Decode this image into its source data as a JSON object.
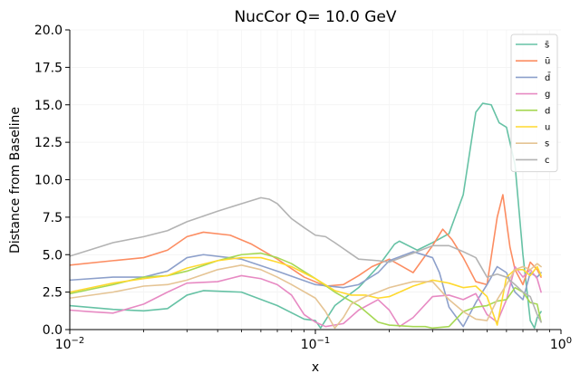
{
  "chart_data": {
    "type": "line",
    "title": "NucCor Q= 10.0 GeV",
    "xlabel": "x",
    "ylabel": "Distance from Baseline",
    "xscale": "log",
    "xlim": [
      0.01,
      1.0
    ],
    "ylim": [
      0,
      20
    ],
    "xticks": [
      {
        "value": 0.01,
        "label": "10",
        "exp": "−2"
      },
      {
        "value": 0.1,
        "label": "10",
        "exp": "−1"
      },
      {
        "value": 1.0,
        "label": "10",
        "exp": "0"
      }
    ],
    "yticks": [
      0.0,
      2.5,
      5.0,
      7.5,
      10.0,
      12.5,
      15.0,
      17.5,
      20.0
    ],
    "ytick_labels": [
      "0.0",
      "2.5",
      "5.0",
      "7.5",
      "10.0",
      "12.5",
      "15.0",
      "17.5",
      "20.0"
    ],
    "grid": true,
    "legend_position": "top-right",
    "series": [
      {
        "name": "s̄",
        "color": "#66c2a5",
        "x": [
          0.01,
          0.015,
          0.02,
          0.025,
          0.03,
          0.035,
          0.05,
          0.07,
          0.09,
          0.1,
          0.105,
          0.12,
          0.15,
          0.18,
          0.21,
          0.22,
          0.26,
          0.3,
          0.35,
          0.4,
          0.45,
          0.48,
          0.52,
          0.56,
          0.6,
          0.65,
          0.7,
          0.75,
          0.78,
          0.8,
          0.83
        ],
        "y": [
          1.6,
          1.35,
          1.25,
          1.4,
          2.3,
          2.6,
          2.5,
          1.6,
          0.7,
          0.6,
          0.1,
          1.6,
          2.8,
          4.2,
          5.7,
          5.9,
          5.3,
          5.8,
          6.4,
          9.0,
          14.5,
          15.1,
          15.0,
          13.8,
          13.5,
          11.0,
          5.0,
          0.6,
          0.1,
          0.8,
          1.2
        ]
      },
      {
        "name": "ū",
        "color": "#fc8d62",
        "x": [
          0.01,
          0.015,
          0.02,
          0.025,
          0.03,
          0.035,
          0.045,
          0.055,
          0.07,
          0.09,
          0.11,
          0.13,
          0.15,
          0.17,
          0.2,
          0.25,
          0.3,
          0.33,
          0.36,
          0.4,
          0.45,
          0.5,
          0.55,
          0.58,
          0.62,
          0.65,
          0.7,
          0.75,
          0.8,
          0.83
        ],
        "y": [
          4.3,
          4.6,
          4.8,
          5.3,
          6.2,
          6.5,
          6.3,
          5.7,
          4.7,
          3.5,
          2.9,
          3.0,
          3.6,
          4.2,
          4.7,
          3.8,
          5.6,
          6.7,
          6.0,
          4.8,
          3.2,
          3.0,
          7.5,
          9.0,
          5.5,
          4.0,
          3.0,
          4.5,
          4.0,
          3.5
        ]
      },
      {
        "name": "d̄",
        "color": "#8da0cb",
        "x": [
          0.01,
          0.015,
          0.02,
          0.025,
          0.03,
          0.035,
          0.05,
          0.07,
          0.1,
          0.13,
          0.15,
          0.18,
          0.2,
          0.25,
          0.3,
          0.32,
          0.35,
          0.4,
          0.45,
          0.5,
          0.55,
          0.6,
          0.65,
          0.7,
          0.75,
          0.8,
          0.83
        ],
        "y": [
          3.3,
          3.5,
          3.5,
          3.9,
          4.8,
          5.0,
          4.7,
          3.9,
          3.0,
          2.8,
          3.0,
          3.8,
          4.6,
          5.2,
          4.8,
          3.8,
          1.5,
          0.2,
          1.8,
          3.0,
          4.2,
          3.8,
          2.5,
          2.0,
          3.8,
          3.5,
          3.8
        ]
      },
      {
        "name": "g",
        "color": "#e78ac3",
        "x": [
          0.01,
          0.012,
          0.015,
          0.02,
          0.025,
          0.03,
          0.04,
          0.05,
          0.06,
          0.07,
          0.08,
          0.09,
          0.1,
          0.11,
          0.13,
          0.15,
          0.18,
          0.2,
          0.22,
          0.25,
          0.3,
          0.35,
          0.4,
          0.45,
          0.5,
          0.55,
          0.6,
          0.65,
          0.7,
          0.75,
          0.8,
          0.83
        ],
        "y": [
          1.3,
          1.2,
          1.1,
          1.7,
          2.5,
          3.1,
          3.2,
          3.6,
          3.4,
          3.0,
          2.3,
          1.0,
          0.5,
          0.2,
          0.4,
          1.3,
          2.0,
          1.3,
          0.2,
          0.8,
          2.2,
          2.3,
          2.0,
          2.4,
          1.0,
          0.5,
          2.0,
          4.2,
          3.5,
          4.0,
          3.4,
          2.5
        ]
      },
      {
        "name": "d",
        "color": "#a6d854",
        "x": [
          0.01,
          0.015,
          0.02,
          0.025,
          0.03,
          0.04,
          0.05,
          0.06,
          0.07,
          0.08,
          0.1,
          0.12,
          0.15,
          0.18,
          0.2,
          0.25,
          0.28,
          0.3,
          0.35,
          0.4,
          0.45,
          0.5,
          0.55,
          0.6,
          0.65,
          0.7,
          0.75,
          0.8,
          0.83
        ],
        "y": [
          2.4,
          3.0,
          3.5,
          3.6,
          3.9,
          4.6,
          5.0,
          5.1,
          4.8,
          4.4,
          3.4,
          2.5,
          1.6,
          0.5,
          0.3,
          0.2,
          0.2,
          0.1,
          0.2,
          1.2,
          1.5,
          1.6,
          1.9,
          2.0,
          2.8,
          2.5,
          1.8,
          1.7,
          0.5
        ]
      },
      {
        "name": "u",
        "color": "#ffd92f",
        "x": [
          0.01,
          0.015,
          0.02,
          0.025,
          0.03,
          0.04,
          0.05,
          0.06,
          0.07,
          0.08,
          0.1,
          0.12,
          0.14,
          0.16,
          0.18,
          0.2,
          0.25,
          0.3,
          0.35,
          0.4,
          0.45,
          0.5,
          0.55,
          0.6,
          0.65,
          0.7,
          0.75,
          0.8,
          0.83
        ],
        "y": [
          2.5,
          3.1,
          3.4,
          3.6,
          4.1,
          4.6,
          4.8,
          4.8,
          4.5,
          4.2,
          3.4,
          2.6,
          2.3,
          2.3,
          2.1,
          2.2,
          2.9,
          3.3,
          3.1,
          2.8,
          2.9,
          2.2,
          0.3,
          3.5,
          4.0,
          4.0,
          3.6,
          4.2,
          3.6
        ]
      },
      {
        "name": "s",
        "color": "#e5c494",
        "x": [
          0.01,
          0.015,
          0.02,
          0.025,
          0.03,
          0.04,
          0.05,
          0.06,
          0.07,
          0.08,
          0.1,
          0.11,
          0.12,
          0.13,
          0.14,
          0.16,
          0.18,
          0.2,
          0.25,
          0.3,
          0.35,
          0.4,
          0.45,
          0.5,
          0.55,
          0.6,
          0.65,
          0.7,
          0.75,
          0.8,
          0.83
        ],
        "y": [
          2.1,
          2.5,
          2.9,
          3.0,
          3.3,
          4.0,
          4.3,
          4.0,
          3.5,
          3.0,
          2.1,
          1.2,
          0.1,
          0.8,
          1.7,
          2.2,
          2.5,
          2.8,
          3.2,
          3.2,
          2.0,
          1.2,
          0.7,
          0.6,
          2.0,
          3.0,
          4.0,
          4.2,
          4.0,
          4.4,
          4.2
        ]
      },
      {
        "name": "c",
        "color": "#b3b3b3",
        "x": [
          0.01,
          0.012,
          0.015,
          0.02,
          0.025,
          0.03,
          0.04,
          0.05,
          0.06,
          0.065,
          0.07,
          0.08,
          0.09,
          0.1,
          0.11,
          0.12,
          0.15,
          0.18,
          0.2,
          0.25,
          0.3,
          0.35,
          0.4,
          0.45,
          0.5,
          0.55,
          0.6,
          0.65,
          0.7,
          0.75,
          0.8,
          0.83
        ],
        "y": [
          4.9,
          5.3,
          5.8,
          6.2,
          6.6,
          7.2,
          7.9,
          8.4,
          8.8,
          8.7,
          8.4,
          7.4,
          6.8,
          6.3,
          6.2,
          5.8,
          4.7,
          4.6,
          4.5,
          5.1,
          5.6,
          5.6,
          5.2,
          4.8,
          3.5,
          3.7,
          3.5,
          3.0,
          2.5,
          2.2,
          1.0,
          0.5
        ]
      }
    ]
  }
}
